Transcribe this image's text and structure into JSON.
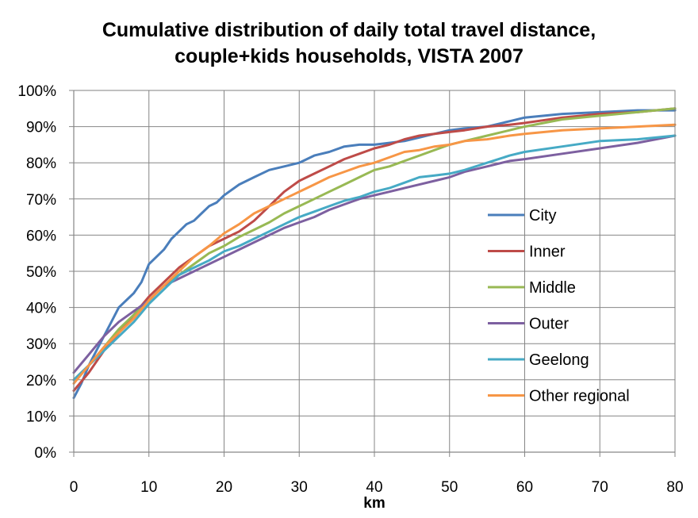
{
  "chart_data": {
    "type": "line",
    "title_line1": "Cumulative distribution of daily total travel distance,",
    "title_line2": "couple+kids households, VISTA 2007",
    "xlabel": "km",
    "ylabel": "",
    "xlim": [
      0,
      80
    ],
    "ylim": [
      0,
      100
    ],
    "x_ticks": [
      0,
      10,
      20,
      30,
      40,
      50,
      60,
      70,
      80
    ],
    "x_tick_labels": [
      "0",
      "10",
      "20",
      "30",
      "40",
      "50",
      "60",
      "70",
      "80"
    ],
    "y_ticks": [
      0,
      10,
      20,
      30,
      40,
      50,
      60,
      70,
      80,
      90,
      100
    ],
    "y_tick_labels": [
      "0%",
      "10%",
      "20%",
      "30%",
      "40%",
      "50%",
      "60%",
      "70%",
      "80%",
      "90%",
      "100%"
    ],
    "grid": true,
    "legend_position": "right",
    "series": [
      {
        "name": "City",
        "color": "#4a7ebb",
        "points": [
          [
            0,
            15
          ],
          [
            1,
            19
          ],
          [
            2,
            24
          ],
          [
            3,
            28
          ],
          [
            4,
            32
          ],
          [
            5,
            36
          ],
          [
            6,
            40
          ],
          [
            7,
            42
          ],
          [
            8,
            44
          ],
          [
            9,
            47
          ],
          [
            10,
            52
          ],
          [
            11,
            54
          ],
          [
            12,
            56
          ],
          [
            13,
            59
          ],
          [
            14,
            61
          ],
          [
            15,
            63
          ],
          [
            16,
            64
          ],
          [
            17,
            66
          ],
          [
            18,
            68
          ],
          [
            19,
            69
          ],
          [
            20,
            71
          ],
          [
            22,
            74
          ],
          [
            24,
            76
          ],
          [
            26,
            78
          ],
          [
            28,
            79
          ],
          [
            30,
            80
          ],
          [
            32,
            82
          ],
          [
            34,
            83
          ],
          [
            36,
            84.5
          ],
          [
            38,
            85
          ],
          [
            40,
            85
          ],
          [
            42,
            85.5
          ],
          [
            44,
            86
          ],
          [
            46,
            87
          ],
          [
            48,
            88
          ],
          [
            50,
            89
          ],
          [
            52,
            89.5
          ],
          [
            55,
            90
          ],
          [
            58,
            91.5
          ],
          [
            60,
            92.5
          ],
          [
            65,
            93.5
          ],
          [
            70,
            94
          ],
          [
            75,
            94.5
          ],
          [
            80,
            94.5
          ]
        ]
      },
      {
        "name": "Inner",
        "color": "#be4b48",
        "points": [
          [
            0,
            17
          ],
          [
            2,
            22
          ],
          [
            4,
            28
          ],
          [
            6,
            33
          ],
          [
            8,
            38
          ],
          [
            10,
            43
          ],
          [
            12,
            47
          ],
          [
            14,
            51
          ],
          [
            16,
            54
          ],
          [
            18,
            57
          ],
          [
            20,
            59
          ],
          [
            22,
            61
          ],
          [
            24,
            64
          ],
          [
            26,
            68
          ],
          [
            28,
            72
          ],
          [
            30,
            75
          ],
          [
            32,
            77
          ],
          [
            34,
            79
          ],
          [
            36,
            81
          ],
          [
            38,
            82.5
          ],
          [
            40,
            84
          ],
          [
            42,
            85
          ],
          [
            44,
            86.5
          ],
          [
            46,
            87.5
          ],
          [
            48,
            88
          ],
          [
            50,
            88.5
          ],
          [
            52,
            89
          ],
          [
            55,
            90
          ],
          [
            58,
            90.5
          ],
          [
            60,
            91
          ],
          [
            65,
            92.5
          ],
          [
            70,
            93.5
          ],
          [
            75,
            94
          ],
          [
            80,
            95
          ]
        ]
      },
      {
        "name": "Middle",
        "color": "#98b954",
        "points": [
          [
            0,
            20
          ],
          [
            2,
            24
          ],
          [
            4,
            29
          ],
          [
            6,
            34
          ],
          [
            8,
            38
          ],
          [
            10,
            42
          ],
          [
            12,
            46
          ],
          [
            14,
            49
          ],
          [
            16,
            52
          ],
          [
            18,
            55
          ],
          [
            20,
            57
          ],
          [
            22,
            59.5
          ],
          [
            24,
            61.5
          ],
          [
            26,
            63.5
          ],
          [
            28,
            66
          ],
          [
            30,
            68
          ],
          [
            32,
            70
          ],
          [
            34,
            72
          ],
          [
            36,
            74
          ],
          [
            38,
            76
          ],
          [
            40,
            78
          ],
          [
            42,
            79
          ],
          [
            44,
            80.5
          ],
          [
            46,
            82
          ],
          [
            48,
            83.5
          ],
          [
            50,
            85
          ],
          [
            52,
            86
          ],
          [
            55,
            87.5
          ],
          [
            58,
            89
          ],
          [
            60,
            90
          ],
          [
            65,
            92
          ],
          [
            70,
            93
          ],
          [
            75,
            94
          ],
          [
            80,
            95
          ]
        ]
      },
      {
        "name": "Outer",
        "color": "#7d60a0",
        "points": [
          [
            0,
            22
          ],
          [
            2,
            27
          ],
          [
            4,
            32
          ],
          [
            6,
            36
          ],
          [
            8,
            39
          ],
          [
            10,
            42
          ],
          [
            12,
            46
          ],
          [
            14,
            48
          ],
          [
            16,
            50
          ],
          [
            18,
            52
          ],
          [
            20,
            54
          ],
          [
            22,
            56
          ],
          [
            24,
            58
          ],
          [
            26,
            60
          ],
          [
            28,
            62
          ],
          [
            30,
            63.5
          ],
          [
            32,
            65
          ],
          [
            34,
            67
          ],
          [
            36,
            68.5
          ],
          [
            38,
            70
          ],
          [
            40,
            71
          ],
          [
            42,
            72
          ],
          [
            44,
            73
          ],
          [
            46,
            74
          ],
          [
            48,
            75
          ],
          [
            50,
            76
          ],
          [
            52,
            77.5
          ],
          [
            55,
            79
          ],
          [
            58,
            80.5
          ],
          [
            60,
            81
          ],
          [
            65,
            82.5
          ],
          [
            70,
            84
          ],
          [
            75,
            85.5
          ],
          [
            80,
            87.5
          ]
        ]
      },
      {
        "name": "Geelong",
        "color": "#46aac5",
        "points": [
          [
            0,
            20
          ],
          [
            2,
            24
          ],
          [
            4,
            28
          ],
          [
            6,
            32
          ],
          [
            8,
            36
          ],
          [
            10,
            41
          ],
          [
            12,
            45
          ],
          [
            14,
            49
          ],
          [
            16,
            51
          ],
          [
            18,
            53
          ],
          [
            20,
            55.5
          ],
          [
            22,
            57
          ],
          [
            24,
            59
          ],
          [
            26,
            61
          ],
          [
            28,
            63
          ],
          [
            30,
            65
          ],
          [
            32,
            66.5
          ],
          [
            34,
            68
          ],
          [
            36,
            69.5
          ],
          [
            38,
            70.5
          ],
          [
            40,
            72
          ],
          [
            42,
            73
          ],
          [
            44,
            74.5
          ],
          [
            46,
            76
          ],
          [
            48,
            76.5
          ],
          [
            50,
            77
          ],
          [
            52,
            78
          ],
          [
            55,
            80
          ],
          [
            58,
            82
          ],
          [
            60,
            83
          ],
          [
            65,
            84.5
          ],
          [
            70,
            86
          ],
          [
            75,
            86.5
          ],
          [
            80,
            87.5
          ]
        ]
      },
      {
        "name": "Other regional",
        "color": "#f79646",
        "points": [
          [
            0,
            19
          ],
          [
            2,
            24
          ],
          [
            4,
            29
          ],
          [
            6,
            33
          ],
          [
            8,
            37
          ],
          [
            10,
            42
          ],
          [
            12,
            46
          ],
          [
            14,
            50
          ],
          [
            16,
            54
          ],
          [
            18,
            57
          ],
          [
            20,
            60.5
          ],
          [
            22,
            63
          ],
          [
            24,
            66
          ],
          [
            26,
            68
          ],
          [
            28,
            70
          ],
          [
            30,
            72
          ],
          [
            32,
            74
          ],
          [
            34,
            76
          ],
          [
            36,
            77.5
          ],
          [
            38,
            79
          ],
          [
            40,
            80
          ],
          [
            42,
            81.5
          ],
          [
            44,
            83
          ],
          [
            46,
            83.5
          ],
          [
            48,
            84.5
          ],
          [
            50,
            85
          ],
          [
            52,
            86
          ],
          [
            55,
            86.5
          ],
          [
            58,
            87.5
          ],
          [
            60,
            88
          ],
          [
            65,
            89
          ],
          [
            70,
            89.5
          ],
          [
            75,
            90
          ],
          [
            80,
            90.5
          ]
        ]
      }
    ]
  }
}
